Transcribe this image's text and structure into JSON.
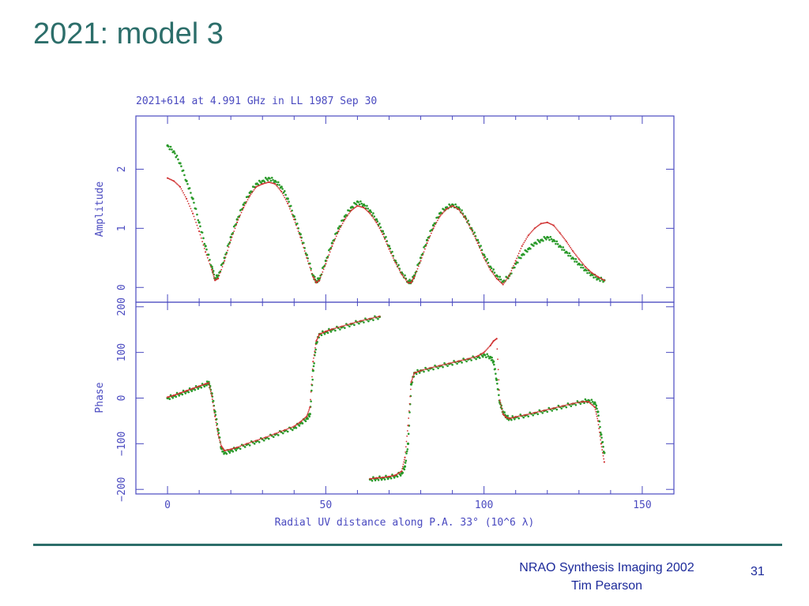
{
  "slide": {
    "title": "2021: model 3",
    "footer_line1": "NRAO Synthesis Imaging 2002",
    "footer_line2": "Tim Pearson",
    "number": "31"
  },
  "colors": {
    "title": "#2c6e6a",
    "axes": "#4a4ac0",
    "data": "#2a9a2a",
    "model": "#d03030",
    "footer": "#1c2a9a"
  },
  "chart_data": [
    {
      "type": "scatter",
      "title": "2021+614 at 4.991 GHz in LL 1987 Sep 30",
      "xlabel": "Radial UV distance along P.A. 33° (10^6 λ)",
      "ylabel": "Amplitude",
      "xlim": [
        -10,
        160
      ],
      "ylim": [
        -0.25,
        2.9
      ],
      "xticks": [
        0,
        50,
        100,
        150
      ],
      "yticks": [
        0,
        1,
        2
      ],
      "grid": false,
      "series": [
        {
          "color": "#2a9a2a",
          "x": [
            0,
            2,
            4,
            6,
            8,
            10,
            12,
            14,
            15,
            16,
            18,
            20,
            22,
            24,
            26,
            28,
            30,
            32,
            34,
            36,
            38,
            40,
            42,
            44,
            46,
            47,
            48,
            50,
            52,
            54,
            56,
            58,
            60,
            62,
            64,
            66,
            68,
            70,
            72,
            74,
            76,
            77,
            78,
            80,
            82,
            84,
            86,
            88,
            90,
            92,
            94,
            96,
            98,
            100,
            102,
            104,
            106,
            108,
            110,
            112,
            114,
            116,
            118,
            120,
            122,
            124,
            126,
            128,
            130,
            132,
            134,
            136,
            138
          ],
          "values": [
            2.4,
            2.3,
            2.1,
            1.8,
            1.5,
            1.1,
            0.7,
            0.35,
            0.15,
            0.2,
            0.5,
            0.85,
            1.15,
            1.4,
            1.6,
            1.75,
            1.8,
            1.85,
            1.8,
            1.7,
            1.5,
            1.2,
            0.9,
            0.55,
            0.2,
            0.1,
            0.15,
            0.45,
            0.75,
            1.0,
            1.2,
            1.35,
            1.45,
            1.4,
            1.3,
            1.15,
            0.95,
            0.7,
            0.45,
            0.25,
            0.1,
            0.1,
            0.2,
            0.5,
            0.8,
            1.05,
            1.25,
            1.35,
            1.4,
            1.35,
            1.2,
            1.0,
            0.8,
            0.55,
            0.35,
            0.2,
            0.1,
            0.2,
            0.4,
            0.55,
            0.65,
            0.75,
            0.8,
            0.85,
            0.8,
            0.7,
            0.6,
            0.5,
            0.4,
            0.3,
            0.22,
            0.15,
            0.12
          ]
        },
        {
          "color": "#d03030",
          "x": [
            0,
            2,
            4,
            6,
            8,
            10,
            12,
            14,
            15,
            16,
            18,
            20,
            22,
            24,
            26,
            28,
            30,
            32,
            34,
            36,
            38,
            40,
            42,
            44,
            46,
            47,
            48,
            50,
            52,
            54,
            56,
            58,
            60,
            62,
            64,
            66,
            68,
            70,
            72,
            74,
            76,
            77,
            78,
            80,
            82,
            84,
            86,
            88,
            90,
            92,
            94,
            96,
            98,
            100,
            102,
            104,
            106,
            108,
            110,
            112,
            114,
            116,
            118,
            120,
            122,
            124,
            126,
            128,
            130,
            132,
            134,
            136,
            138
          ],
          "values": [
            1.85,
            1.8,
            1.7,
            1.5,
            1.25,
            0.95,
            0.6,
            0.3,
            0.12,
            0.15,
            0.45,
            0.8,
            1.1,
            1.35,
            1.55,
            1.7,
            1.75,
            1.78,
            1.75,
            1.62,
            1.42,
            1.15,
            0.85,
            0.5,
            0.18,
            0.08,
            0.12,
            0.4,
            0.7,
            0.95,
            1.15,
            1.3,
            1.38,
            1.35,
            1.25,
            1.1,
            0.9,
            0.65,
            0.42,
            0.22,
            0.08,
            0.08,
            0.18,
            0.45,
            0.75,
            1.0,
            1.2,
            1.32,
            1.38,
            1.32,
            1.18,
            0.98,
            0.75,
            0.5,
            0.3,
            0.15,
            0.05,
            0.2,
            0.45,
            0.7,
            0.88,
            1.0,
            1.08,
            1.1,
            1.05,
            0.92,
            0.78,
            0.62,
            0.48,
            0.35,
            0.25,
            0.18,
            0.12
          ]
        }
      ]
    },
    {
      "type": "scatter",
      "xlabel": "Radial UV distance along P.A. 33° (10^6 λ)",
      "ylabel": "Phase",
      "xlim": [
        -10,
        160
      ],
      "ylim": [
        -210,
        210
      ],
      "xticks": [
        0,
        50,
        100,
        150
      ],
      "yticks": [
        -200,
        -100,
        0,
        100,
        200
      ],
      "grid": false,
      "series": [
        {
          "color": "#2a9a2a",
          "x": [
            0,
            2,
            4,
            6,
            8,
            10,
            12,
            13,
            14,
            15,
            16,
            17,
            18,
            20,
            22,
            25,
            28,
            31,
            34,
            37,
            40,
            42,
            44,
            45,
            46,
            47,
            48,
            50,
            52,
            55,
            58,
            61,
            64,
            67,
            64,
            66,
            68,
            70,
            72,
            74,
            75,
            76,
            77,
            78,
            80,
            83,
            86,
            89,
            92,
            95,
            98,
            100,
            102,
            103,
            104,
            105,
            106,
            107,
            108,
            110,
            113,
            116,
            119,
            122,
            125,
            128,
            131,
            133,
            135,
            136,
            137,
            138
          ],
          "values": [
            0,
            5,
            10,
            15,
            20,
            25,
            30,
            35,
            10,
            -30,
            -70,
            -110,
            -120,
            -115,
            -110,
            -102,
            -95,
            -88,
            -80,
            -72,
            -65,
            -55,
            -45,
            -35,
            60,
            120,
            140,
            145,
            150,
            155,
            162,
            168,
            173,
            178,
            -178,
            -176,
            -175,
            -173,
            -170,
            -165,
            -150,
            -100,
            30,
            55,
            60,
            65,
            70,
            75,
            80,
            85,
            90,
            95,
            90,
            80,
            40,
            -10,
            -30,
            -40,
            -45,
            -42,
            -38,
            -33,
            -28,
            -23,
            -18,
            -13,
            -8,
            -5,
            -10,
            -30,
            -80,
            -120
          ]
        },
        {
          "color": "#d03030",
          "x": [
            0,
            2,
            4,
            6,
            8,
            10,
            12,
            13,
            14,
            15,
            16,
            17,
            18,
            20,
            22,
            25,
            28,
            31,
            34,
            37,
            40,
            42,
            44,
            45,
            46,
            47,
            48,
            50,
            52,
            55,
            58,
            61,
            64,
            67,
            64,
            66,
            68,
            70,
            72,
            74,
            75,
            76,
            77,
            78,
            80,
            83,
            86,
            89,
            92,
            95,
            98,
            100,
            102,
            103,
            104,
            105,
            106,
            107,
            108,
            110,
            113,
            116,
            119,
            122,
            125,
            128,
            131,
            133,
            135,
            136,
            137,
            138
          ],
          "values": [
            2,
            6,
            11,
            16,
            21,
            26,
            31,
            33,
            5,
            -40,
            -80,
            -105,
            -115,
            -112,
            -108,
            -100,
            -93,
            -86,
            -78,
            -70,
            -62,
            -52,
            -40,
            -20,
            80,
            125,
            140,
            146,
            151,
            157,
            163,
            169,
            174,
            179,
            -177,
            -175,
            -174,
            -172,
            -169,
            -160,
            -130,
            -60,
            35,
            55,
            60,
            66,
            71,
            76,
            81,
            86,
            92,
            100,
            115,
            125,
            130,
            -5,
            -35,
            -42,
            -45,
            -41,
            -37,
            -32,
            -27,
            -22,
            -17,
            -12,
            -8,
            -8,
            -20,
            -50,
            -100,
            -140
          ]
        }
      ]
    }
  ]
}
